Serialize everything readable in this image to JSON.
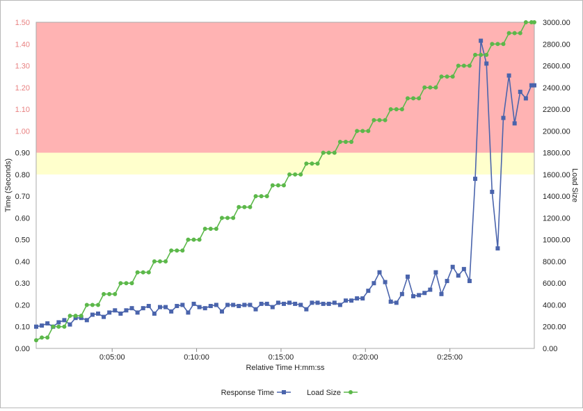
{
  "chart_data": {
    "type": "line",
    "title": "",
    "xlabel": "Relative Time H:mm:ss",
    "ylabel_left": "Time (Seconds)",
    "ylabel_right": "Load Size",
    "x_unit": "seconds",
    "xlim": [
      30,
      1800
    ],
    "x_ticks": [
      {
        "value": 300,
        "label": "0:05:00"
      },
      {
        "value": 600,
        "label": "0:10:00"
      },
      {
        "value": 900,
        "label": "0:15:00"
      },
      {
        "value": 1200,
        "label": "0:20:00"
      },
      {
        "value": 1500,
        "label": "0:25:00"
      }
    ],
    "y_left": {
      "min": 0,
      "max": 1.5,
      "ticks": [
        "0.00",
        "0.10",
        "0.20",
        "0.30",
        "0.40",
        "0.50",
        "0.60",
        "0.70",
        "0.80",
        "0.90",
        "1.00",
        "1.10",
        "1.20",
        "1.30",
        "1.40",
        "1.50"
      ]
    },
    "y_right": {
      "min": 0,
      "max": 3000,
      "ticks": [
        "0.00",
        "200.00",
        "400.00",
        "600.00",
        "800.00",
        "1000.00",
        "1200.00",
        "1400.00",
        "1600.00",
        "1800.00",
        "2000.00",
        "2200.00",
        "2400.00",
        "2600.00",
        "2800.00",
        "3000.00"
      ]
    },
    "bands": [
      {
        "from": 0.8,
        "to": 0.9,
        "color": "#ffffcc"
      },
      {
        "from": 0.9,
        "to": 1.5,
        "color": "#ffb3b3"
      }
    ],
    "grid": false,
    "legend_position": "bottom",
    "series": [
      {
        "name": "Response Time",
        "axis": "left",
        "color": "#4a64ac",
        "marker": "square",
        "x": [
          30,
          50,
          70,
          90,
          110,
          130,
          150,
          170,
          190,
          210,
          230,
          250,
          270,
          290,
          310,
          330,
          350,
          370,
          390,
          410,
          430,
          450,
          470,
          490,
          510,
          530,
          550,
          570,
          590,
          610,
          630,
          650,
          670,
          690,
          710,
          730,
          750,
          770,
          790,
          810,
          830,
          850,
          870,
          890,
          910,
          930,
          950,
          970,
          990,
          1010,
          1030,
          1050,
          1070,
          1090,
          1110,
          1130,
          1150,
          1170,
          1190,
          1210,
          1230,
          1250,
          1270,
          1290,
          1310,
          1330,
          1350,
          1370,
          1390,
          1410,
          1430,
          1450,
          1470,
          1490,
          1510,
          1530,
          1550,
          1570,
          1590,
          1610,
          1630,
          1650,
          1670,
          1690,
          1710,
          1730,
          1750,
          1770,
          1790,
          1800
        ],
        "values": [
          0.1,
          0.105,
          0.115,
          0.1,
          0.12,
          0.13,
          0.11,
          0.14,
          0.14,
          0.13,
          0.155,
          0.16,
          0.145,
          0.165,
          0.175,
          0.16,
          0.175,
          0.185,
          0.165,
          0.185,
          0.195,
          0.16,
          0.19,
          0.19,
          0.17,
          0.195,
          0.2,
          0.165,
          0.205,
          0.19,
          0.185,
          0.195,
          0.2,
          0.17,
          0.2,
          0.2,
          0.195,
          0.2,
          0.2,
          0.18,
          0.205,
          0.205,
          0.19,
          0.21,
          0.205,
          0.21,
          0.205,
          0.2,
          0.18,
          0.21,
          0.21,
          0.205,
          0.205,
          0.21,
          0.2,
          0.22,
          0.22,
          0.23,
          0.23,
          0.265,
          0.3,
          0.35,
          0.305,
          0.215,
          0.21,
          0.25,
          0.33,
          0.24,
          0.245,
          0.255,
          0.27,
          0.35,
          0.25,
          0.31,
          0.375,
          0.335,
          0.365,
          0.31,
          0.78,
          1.415,
          1.31,
          0.72,
          0.46,
          1.06,
          1.255,
          1.035,
          1.18,
          1.15,
          1.21,
          1.21
        ]
      },
      {
        "name": "Load Size",
        "axis": "right",
        "color": "#5cb84a",
        "marker": "circle",
        "x": [
          30,
          50,
          70,
          90,
          110,
          130,
          150,
          170,
          190,
          210,
          230,
          250,
          270,
          290,
          310,
          330,
          350,
          370,
          390,
          410,
          430,
          450,
          470,
          490,
          510,
          530,
          550,
          570,
          590,
          610,
          630,
          650,
          670,
          690,
          710,
          730,
          750,
          770,
          790,
          810,
          830,
          850,
          870,
          890,
          910,
          930,
          950,
          970,
          990,
          1010,
          1030,
          1050,
          1070,
          1090,
          1110,
          1130,
          1150,
          1170,
          1190,
          1210,
          1230,
          1250,
          1270,
          1290,
          1310,
          1330,
          1350,
          1370,
          1390,
          1410,
          1430,
          1450,
          1470,
          1490,
          1510,
          1530,
          1550,
          1570,
          1590,
          1610,
          1630,
          1650,
          1670,
          1690,
          1710,
          1730,
          1750,
          1770,
          1790,
          1800
        ],
        "values": [
          75,
          100,
          100,
          200,
          200,
          200,
          300,
          300,
          300,
          400,
          400,
          400,
          500,
          500,
          500,
          600,
          600,
          600,
          700,
          700,
          700,
          800,
          800,
          800,
          900,
          900,
          900,
          1000,
          1000,
          1000,
          1100,
          1100,
          1100,
          1200,
          1200,
          1200,
          1300,
          1300,
          1300,
          1400,
          1400,
          1400,
          1500,
          1500,
          1500,
          1600,
          1600,
          1600,
          1700,
          1700,
          1700,
          1800,
          1800,
          1800,
          1900,
          1900,
          1900,
          2000,
          2000,
          2000,
          2100,
          2100,
          2100,
          2200,
          2200,
          2200,
          2300,
          2300,
          2300,
          2400,
          2400,
          2400,
          2500,
          2500,
          2500,
          2600,
          2600,
          2600,
          2700,
          2700,
          2700,
          2800,
          2800,
          2800,
          2900,
          2900,
          2900,
          3000,
          3000,
          3000
        ]
      }
    ]
  }
}
